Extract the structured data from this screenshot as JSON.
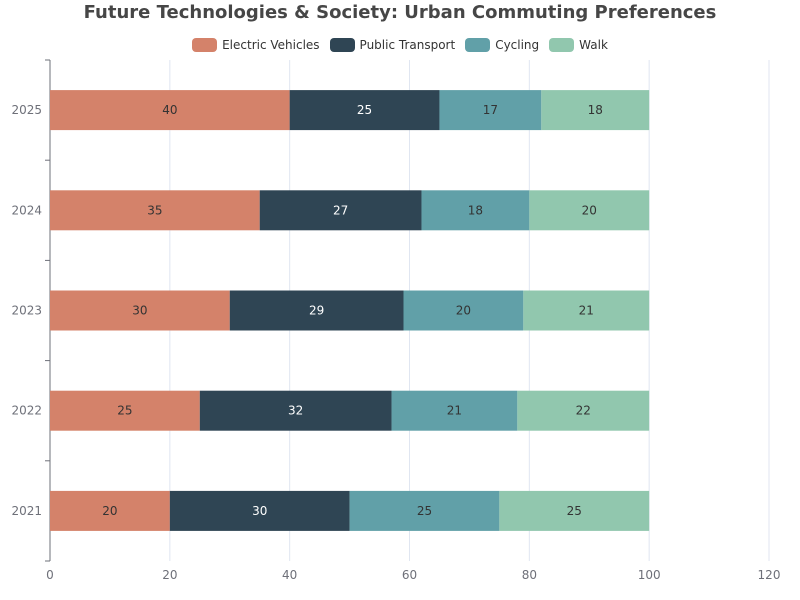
{
  "chart_data": {
    "type": "bar",
    "orientation": "horizontal",
    "stacked": true,
    "title": "Future Technologies & Society: Urban Commuting Preferences",
    "categories": [
      "2021",
      "2022",
      "2023",
      "2024",
      "2025"
    ],
    "series": [
      {
        "name": "Electric Vehicles",
        "color": "#d4826a",
        "label_color": "#333333",
        "values": [
          20,
          25,
          30,
          35,
          40
        ]
      },
      {
        "name": "Public Transport",
        "color": "#2f4554",
        "label_color": "#ffffff",
        "values": [
          30,
          32,
          29,
          27,
          25
        ]
      },
      {
        "name": "Cycling",
        "color": "#61a0a8",
        "label_color": "#333333",
        "values": [
          25,
          21,
          20,
          18,
          17
        ]
      },
      {
        "name": "Walk",
        "color": "#91c7ae",
        "label_color": "#333333",
        "values": [
          25,
          22,
          21,
          20,
          18
        ]
      }
    ],
    "xlim": [
      0,
      120
    ],
    "xticks": [
      "0",
      "20",
      "40",
      "60",
      "80",
      "100",
      "120"
    ],
    "grid": true,
    "legend_position": "top-center"
  }
}
